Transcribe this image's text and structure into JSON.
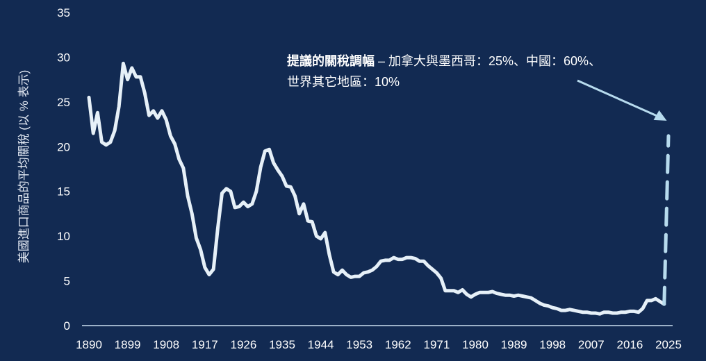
{
  "colors": {
    "background": "#122a52",
    "line": "#e6f0f8",
    "projection": "#b7dbee",
    "axis": "#c9def0",
    "text": "#ffffff"
  },
  "chart_data": {
    "type": "line",
    "title": "",
    "xlabel": "",
    "ylabel": "美國進口商品的平均關稅 (以 % 表示)",
    "xlim": [
      1890,
      2025
    ],
    "ylim": [
      0,
      35
    ],
    "x_ticks": [
      "1890",
      "1899",
      "1908",
      "1917",
      "1926",
      "1935",
      "1944",
      "1953",
      "1962",
      "1971",
      "1980",
      "1989",
      "1998",
      "2007",
      "2016",
      "2025"
    ],
    "y_ticks": [
      "0",
      "5",
      "10",
      "15",
      "20",
      "25",
      "30",
      "35"
    ],
    "grid": false,
    "legend": "none",
    "series": [
      {
        "style": "solid",
        "points": [
          [
            1890,
            25.5
          ],
          [
            1891,
            21.5
          ],
          [
            1892,
            23.8
          ],
          [
            1893,
            20.5
          ],
          [
            1894,
            20.2
          ],
          [
            1895,
            20.5
          ],
          [
            1896,
            21.8
          ],
          [
            1897,
            24.5
          ],
          [
            1898,
            29.3
          ],
          [
            1899,
            27.5
          ],
          [
            1900,
            28.8
          ],
          [
            1901,
            27.8
          ],
          [
            1902,
            27.8
          ],
          [
            1903,
            26.0
          ],
          [
            1904,
            23.5
          ],
          [
            1905,
            24.0
          ],
          [
            1906,
            23.2
          ],
          [
            1907,
            24.0
          ],
          [
            1908,
            23.0
          ],
          [
            1909,
            21.2
          ],
          [
            1910,
            20.3
          ],
          [
            1911,
            18.6
          ],
          [
            1912,
            17.6
          ],
          [
            1913,
            14.5
          ],
          [
            1914,
            12.5
          ],
          [
            1915,
            9.8
          ],
          [
            1916,
            8.5
          ],
          [
            1917,
            6.5
          ],
          [
            1918,
            5.7
          ],
          [
            1919,
            6.3
          ],
          [
            1920,
            10.8
          ],
          [
            1921,
            14.8
          ],
          [
            1922,
            15.3
          ],
          [
            1923,
            15.0
          ],
          [
            1924,
            13.2
          ],
          [
            1925,
            13.3
          ],
          [
            1926,
            13.8
          ],
          [
            1927,
            13.3
          ],
          [
            1928,
            13.6
          ],
          [
            1929,
            15.0
          ],
          [
            1930,
            17.7
          ],
          [
            1931,
            19.5
          ],
          [
            1932,
            19.7
          ],
          [
            1933,
            18.2
          ],
          [
            1934,
            17.4
          ],
          [
            1935,
            16.7
          ],
          [
            1936,
            15.6
          ],
          [
            1937,
            15.5
          ],
          [
            1938,
            14.5
          ],
          [
            1939,
            12.5
          ],
          [
            1940,
            13.6
          ],
          [
            1941,
            11.7
          ],
          [
            1942,
            11.6
          ],
          [
            1943,
            10.0
          ],
          [
            1944,
            9.7
          ],
          [
            1945,
            10.4
          ],
          [
            1946,
            7.9
          ],
          [
            1947,
            6.0
          ],
          [
            1948,
            5.7
          ],
          [
            1949,
            6.2
          ],
          [
            1950,
            5.7
          ],
          [
            1951,
            5.4
          ],
          [
            1952,
            5.5
          ],
          [
            1953,
            5.5
          ],
          [
            1954,
            5.9
          ],
          [
            1955,
            6.0
          ],
          [
            1956,
            6.2
          ],
          [
            1957,
            6.6
          ],
          [
            1958,
            7.2
          ],
          [
            1959,
            7.3
          ],
          [
            1960,
            7.3
          ],
          [
            1961,
            7.6
          ],
          [
            1962,
            7.4
          ],
          [
            1963,
            7.4
          ],
          [
            1964,
            7.6
          ],
          [
            1965,
            7.6
          ],
          [
            1966,
            7.5
          ],
          [
            1967,
            7.2
          ],
          [
            1968,
            7.2
          ],
          [
            1969,
            6.7
          ],
          [
            1970,
            6.3
          ],
          [
            1971,
            5.9
          ],
          [
            1972,
            5.3
          ],
          [
            1973,
            3.9
          ],
          [
            1974,
            3.9
          ],
          [
            1975,
            3.9
          ],
          [
            1976,
            3.7
          ],
          [
            1977,
            4.0
          ],
          [
            1978,
            3.5
          ],
          [
            1979,
            3.2
          ],
          [
            1980,
            3.5
          ],
          [
            1981,
            3.7
          ],
          [
            1982,
            3.7
          ],
          [
            1983,
            3.7
          ],
          [
            1984,
            3.8
          ],
          [
            1985,
            3.6
          ],
          [
            1986,
            3.5
          ],
          [
            1987,
            3.4
          ],
          [
            1988,
            3.4
          ],
          [
            1989,
            3.3
          ],
          [
            1990,
            3.4
          ],
          [
            1991,
            3.3
          ],
          [
            1992,
            3.2
          ],
          [
            1993,
            3.1
          ],
          [
            1994,
            2.8
          ],
          [
            1995,
            2.5
          ],
          [
            1996,
            2.3
          ],
          [
            1997,
            2.2
          ],
          [
            1998,
            2.0
          ],
          [
            1999,
            1.9
          ],
          [
            2000,
            1.7
          ],
          [
            2001,
            1.7
          ],
          [
            2002,
            1.8
          ],
          [
            2003,
            1.7
          ],
          [
            2004,
            1.6
          ],
          [
            2005,
            1.5
          ],
          [
            2006,
            1.5
          ],
          [
            2007,
            1.4
          ],
          [
            2008,
            1.4
          ],
          [
            2009,
            1.3
          ],
          [
            2010,
            1.5
          ],
          [
            2011,
            1.5
          ],
          [
            2012,
            1.4
          ],
          [
            2013,
            1.4
          ],
          [
            2014,
            1.5
          ],
          [
            2015,
            1.5
          ],
          [
            2016,
            1.6
          ],
          [
            2017,
            1.6
          ],
          [
            2018,
            1.5
          ],
          [
            2019,
            1.9
          ],
          [
            2020,
            2.8
          ],
          [
            2021,
            2.8
          ],
          [
            2022,
            3.0
          ],
          [
            2023,
            2.7
          ],
          [
            2024,
            2.4
          ]
        ]
      },
      {
        "style": "dashed",
        "points": [
          [
            2024,
            2.4
          ],
          [
            2025,
            21.2
          ]
        ]
      }
    ],
    "annotations": [
      {
        "bold": "提議的關稅調幅",
        "line1": " – 加拿大與墨西哥：25%、中國：60%、",
        "line2": "世界其它地區：10%"
      }
    ]
  }
}
